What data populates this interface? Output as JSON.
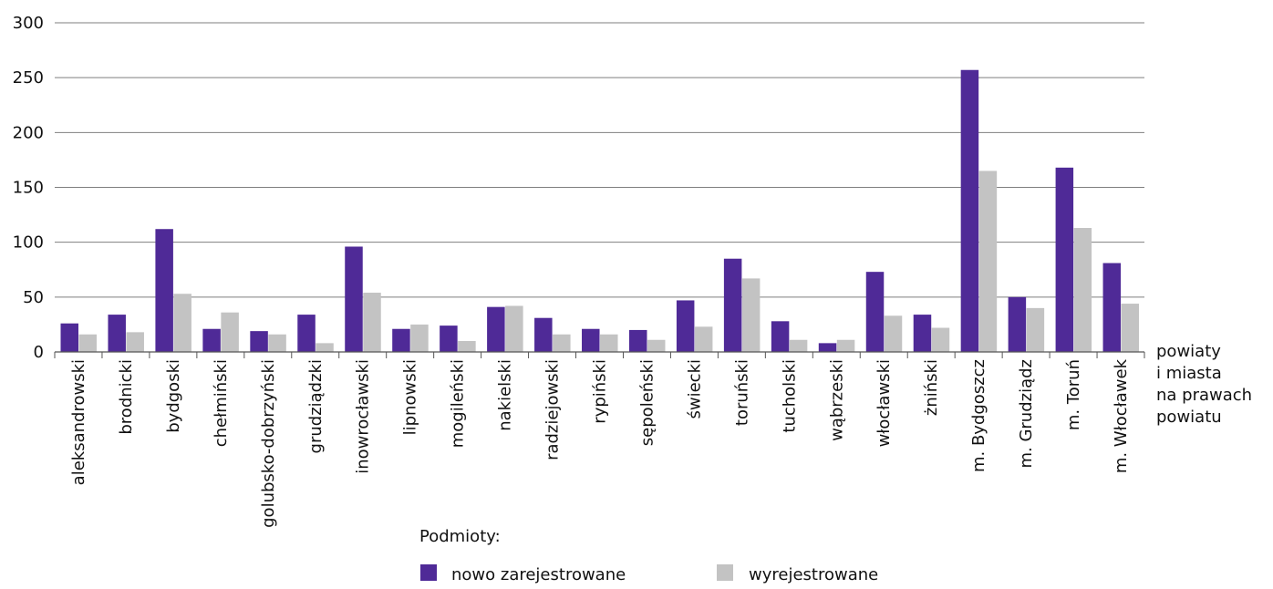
{
  "chart_data": {
    "type": "bar",
    "categories": [
      "aleksandrowski",
      "brodnicki",
      "bydgoski",
      "chełmiński",
      "golubsko-dobrzyński",
      "grudziądzki",
      "inowrocławski",
      "lipnowski",
      "mogileński",
      "nakielski",
      "radziejowski",
      "rypiński",
      "sępoleński",
      "świecki",
      "toruński",
      "tucholski",
      "wąbrzeski",
      "włocławski",
      "żniński",
      "m. Bydgoszcz",
      "m. Grudziądz",
      "m. Toruń",
      "m. Włocławek"
    ],
    "series": [
      {
        "name": "nowo zarejestrowane",
        "color": "#4f2a97",
        "values": [
          26,
          34,
          112,
          21,
          19,
          34,
          96,
          21,
          24,
          41,
          31,
          21,
          20,
          47,
          85,
          28,
          8,
          73,
          34,
          257,
          50,
          168,
          81
        ]
      },
      {
        "name": "wyrejestrowane",
        "color": "#c3c3c3",
        "values": [
          16,
          18,
          53,
          36,
          16,
          8,
          54,
          25,
          10,
          42,
          16,
          16,
          11,
          23,
          67,
          11,
          11,
          33,
          22,
          165,
          40,
          113,
          44
        ]
      }
    ],
    "ylim": [
      0,
      300
    ],
    "yticks": [
      0,
      50,
      100,
      150,
      200,
      250,
      300
    ],
    "xlabel_lines": [
      "powiaty",
      "i miasta",
      "na prawach",
      "powiatu"
    ],
    "legend_title": "Podmioty:",
    "legend_position": "bottom-center",
    "grid": "horizontal"
  }
}
